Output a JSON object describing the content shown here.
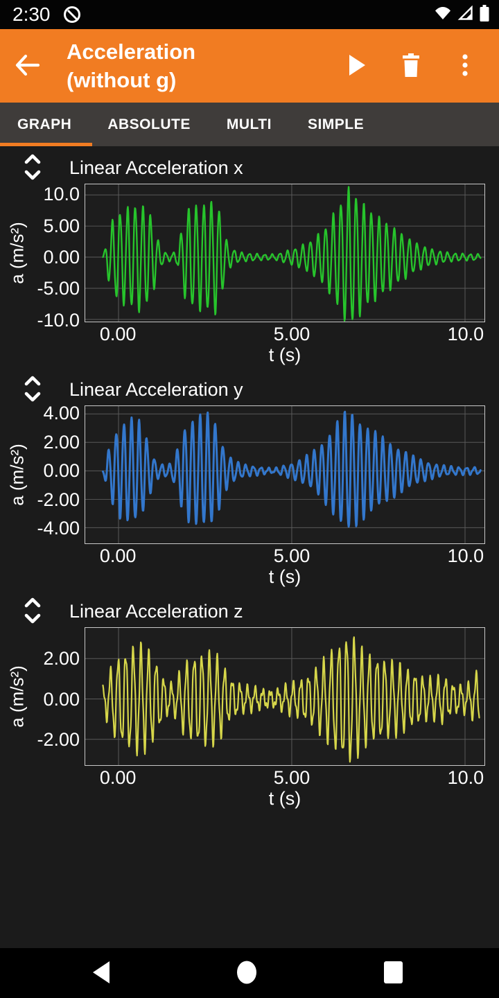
{
  "status_bar": {
    "time": "2:30",
    "icons": [
      "notification-circle-slash-icon",
      "wifi-icon",
      "cell-signal-icon",
      "battery-icon"
    ]
  },
  "app_bar": {
    "title_lines": [
      "Acceleration",
      "(without g)"
    ],
    "back_icon": "back-arrow-icon",
    "actions": [
      {
        "label": "play",
        "icon": "play-icon"
      },
      {
        "label": "delete",
        "icon": "trash-icon"
      },
      {
        "label": "more options",
        "icon": "overflow-menu-icon"
      }
    ]
  },
  "tabs": {
    "items": [
      {
        "label": "GRAPH",
        "selected": true
      },
      {
        "label": "ABSOLUTE",
        "selected": false
      },
      {
        "label": "MULTI",
        "selected": false
      },
      {
        "label": "SIMPLE",
        "selected": false
      }
    ],
    "accent_color": "#f17c22"
  },
  "colors": {
    "app_bar": "#f17c22",
    "tab_bar": "#3f3c3a",
    "background": "#1b1b1b",
    "grid": "#5a5a5a",
    "series_x": "#27c42c",
    "series_y": "#3377cc",
    "series_z": "#d6d64a"
  },
  "chart_data": [
    {
      "type": "line",
      "title": "Linear Acceleration x",
      "xlabel": "t (s)",
      "ylabel": "a (m/s²)",
      "color": "#27c42c",
      "line_width": 2.4,
      "grid": true,
      "xlim": [
        -0.96,
        10.56
      ],
      "ylim": [
        -10.35,
        11.7
      ],
      "xticks": [
        {
          "v": 0,
          "label": "0.00"
        },
        {
          "v": 5,
          "label": "5.00"
        },
        {
          "v": 10,
          "label": "10.0"
        }
      ],
      "yticks": [
        {
          "v": 10,
          "label": "10.0"
        },
        {
          "v": 5,
          "label": "5.00"
        },
        {
          "v": 0,
          "label": "0.00"
        },
        {
          "v": -5,
          "label": "-5.00"
        },
        {
          "v": -10,
          "label": "-10.0"
        }
      ],
      "signal": {
        "t_start": -0.45,
        "t_end": 10.45,
        "dt": 0.012,
        "carrier_hz": 4.55,
        "phase": 0.3,
        "texture": {
          "hz": 11.3,
          "base": 0.06,
          "rel": 0.06,
          "phase": 0.8
        },
        "envelope": [
          [
            -0.45,
            0
          ],
          [
            -0.35,
            2.2
          ],
          [
            -0.2,
            5.5
          ],
          [
            0,
            7
          ],
          [
            0.3,
            7.8
          ],
          [
            0.6,
            8.4
          ],
          [
            0.9,
            7.2
          ],
          [
            1.05,
            4.5
          ],
          [
            1.2,
            1.6
          ],
          [
            1.35,
            0.7
          ],
          [
            1.55,
            0.55
          ],
          [
            1.7,
            1.2
          ],
          [
            1.85,
            5
          ],
          [
            2,
            7.8
          ],
          [
            2.3,
            8.2
          ],
          [
            2.6,
            8.6
          ],
          [
            2.85,
            8.8
          ],
          [
            3,
            5.5
          ],
          [
            3.1,
            2.8
          ],
          [
            3.25,
            1.4
          ],
          [
            3.45,
            0.8
          ],
          [
            3.7,
            0.6
          ],
          [
            4,
            0.5
          ],
          [
            4.3,
            0.4
          ],
          [
            4.55,
            0.45
          ],
          [
            4.75,
            0.8
          ],
          [
            4.95,
            1.1
          ],
          [
            5.15,
            1.5
          ],
          [
            5.4,
            2.1
          ],
          [
            5.65,
            3
          ],
          [
            5.9,
            4.2
          ],
          [
            6.1,
            5.8
          ],
          [
            6.3,
            7.6
          ],
          [
            6.5,
            9.6
          ],
          [
            6.65,
            10.8
          ],
          [
            6.8,
            10.2
          ],
          [
            7,
            8.8
          ],
          [
            7.2,
            7.6
          ],
          [
            7.45,
            6.6
          ],
          [
            7.7,
            5.6
          ],
          [
            8,
            4.4
          ],
          [
            8.25,
            3.4
          ],
          [
            8.5,
            2.5
          ],
          [
            8.75,
            1.8
          ],
          [
            9,
            1.3
          ],
          [
            9.3,
            0.9
          ],
          [
            9.6,
            0.65
          ],
          [
            10,
            0.5
          ],
          [
            10.45,
            0.45
          ]
        ]
      }
    },
    {
      "type": "line",
      "title": "Linear Acceleration y",
      "xlabel": "t (s)",
      "ylabel": "a (m/s²)",
      "color": "#3377cc",
      "line_width": 3.0,
      "grid": true,
      "xlim": [
        -0.96,
        10.56
      ],
      "ylim": [
        -5.1,
        4.55
      ],
      "xticks": [
        {
          "v": 0,
          "label": "0.00"
        },
        {
          "v": 5,
          "label": "5.00"
        },
        {
          "v": 10,
          "label": "10.0"
        }
      ],
      "yticks": [
        {
          "v": 4,
          "label": "4.00"
        },
        {
          "v": 2,
          "label": "2.00"
        },
        {
          "v": 0,
          "label": "0.00"
        },
        {
          "v": -2,
          "label": "-2.00"
        },
        {
          "v": -4,
          "label": "-4.00"
        }
      ],
      "signal": {
        "t_start": -0.45,
        "t_end": 10.45,
        "dt": 0.012,
        "carrier_hz": 4.55,
        "phase": 3.4,
        "texture": {
          "hz": 10.1,
          "base": 0.05,
          "rel": 0.05,
          "phase": 2.1
        },
        "envelope": [
          [
            -0.45,
            0.15
          ],
          [
            -0.35,
            1
          ],
          [
            -0.15,
            2.4
          ],
          [
            0.05,
            3.2
          ],
          [
            0.35,
            3.6
          ],
          [
            0.6,
            3.4
          ],
          [
            0.8,
            2.4
          ],
          [
            0.95,
            1.3
          ],
          [
            1.1,
            0.55
          ],
          [
            1.3,
            0.4
          ],
          [
            1.5,
            0.45
          ],
          [
            1.65,
            1.1
          ],
          [
            1.85,
            2.8
          ],
          [
            2.05,
            3.5
          ],
          [
            2.35,
            3.8
          ],
          [
            2.6,
            3.9
          ],
          [
            2.8,
            3.3
          ],
          [
            2.95,
            2.3
          ],
          [
            3.05,
            1.5
          ],
          [
            3.2,
            1
          ],
          [
            3.4,
            0.6
          ],
          [
            3.65,
            0.4
          ],
          [
            3.95,
            0.3
          ],
          [
            4.25,
            0.2
          ],
          [
            4.5,
            0.15
          ],
          [
            4.7,
            0.3
          ],
          [
            4.9,
            0.45
          ],
          [
            5.1,
            0.6
          ],
          [
            5.3,
            0.85
          ],
          [
            5.55,
            1.2
          ],
          [
            5.8,
            1.7
          ],
          [
            6,
            2.3
          ],
          [
            6.2,
            3
          ],
          [
            6.4,
            3.7
          ],
          [
            6.6,
            4.1
          ],
          [
            6.8,
            3.9
          ],
          [
            7,
            3.4
          ],
          [
            7.25,
            2.9
          ],
          [
            7.5,
            2.5
          ],
          [
            7.75,
            2.1
          ],
          [
            8,
            1.7
          ],
          [
            8.25,
            1.35
          ],
          [
            8.5,
            1
          ],
          [
            8.75,
            0.75
          ],
          [
            9,
            0.55
          ],
          [
            9.25,
            0.4
          ],
          [
            9.5,
            0.3
          ],
          [
            9.8,
            0.25
          ],
          [
            10.45,
            0.22
          ]
        ]
      }
    },
    {
      "type": "line",
      "title": "Linear Acceleration z",
      "xlabel": "t (s)",
      "ylabel": "a (m/s²)",
      "color": "#d6d64a",
      "line_width": 2.2,
      "grid": true,
      "xlim": [
        -0.96,
        10.56
      ],
      "ylim": [
        -3.28,
        3.52
      ],
      "xticks": [
        {
          "v": 0,
          "label": "0.00"
        },
        {
          "v": 5,
          "label": "5.00"
        },
        {
          "v": 10,
          "label": "10.0"
        }
      ],
      "yticks": [
        {
          "v": 2,
          "label": "2.00"
        },
        {
          "v": 0,
          "label": "0.00"
        },
        {
          "v": -2,
          "label": "-2.00"
        }
      ],
      "signal": {
        "t_start": -0.45,
        "t_end": 10.42,
        "dt": 0.012,
        "carrier_hz": 4.55,
        "phase": 1.9,
        "texture": {
          "hz": 12.7,
          "base": 0.15,
          "rel": 0.1,
          "phase": 0.3
        },
        "envelope": [
          [
            -0.45,
            0.5
          ],
          [
            -0.3,
            1.1
          ],
          [
            -0.1,
            1.8
          ],
          [
            0.1,
            2.1
          ],
          [
            0.35,
            2.4
          ],
          [
            0.6,
            2.5
          ],
          [
            0.85,
            2.3
          ],
          [
            1.05,
            1.9
          ],
          [
            1.25,
            1.1
          ],
          [
            1.45,
            0.65
          ],
          [
            1.65,
            0.8
          ],
          [
            1.85,
            1.5
          ],
          [
            2.05,
            1.9
          ],
          [
            2.3,
            2.1
          ],
          [
            2.55,
            2.2
          ],
          [
            2.8,
            2
          ],
          [
            3,
            1.7
          ],
          [
            3.15,
            1.1
          ],
          [
            3.35,
            0.8
          ],
          [
            3.6,
            0.6
          ],
          [
            3.9,
            0.5
          ],
          [
            4.2,
            0.4
          ],
          [
            4.5,
            0.35
          ],
          [
            4.7,
            0.5
          ],
          [
            4.9,
            0.65
          ],
          [
            5.15,
            0.8
          ],
          [
            5.4,
            1
          ],
          [
            5.7,
            1.4
          ],
          [
            6,
            1.9
          ],
          [
            6.25,
            2.4
          ],
          [
            6.45,
            2.8
          ],
          [
            6.65,
            3.05
          ],
          [
            6.85,
            2.7
          ],
          [
            7.05,
            2.2
          ],
          [
            7.3,
            2
          ],
          [
            7.6,
            1.9
          ],
          [
            7.9,
            1.7
          ],
          [
            8.2,
            1.5
          ],
          [
            8.5,
            1.25
          ],
          [
            8.8,
            1
          ],
          [
            9.1,
            0.9
          ],
          [
            9.35,
            1.1
          ],
          [
            9.6,
            0.7
          ],
          [
            9.9,
            0.6
          ],
          [
            10.15,
            0.7
          ],
          [
            10.4,
            1.4
          ]
        ]
      }
    }
  ],
  "nav_bar": {
    "icons": [
      "back-triangle-icon",
      "home-circle-icon",
      "recents-square-icon"
    ]
  }
}
